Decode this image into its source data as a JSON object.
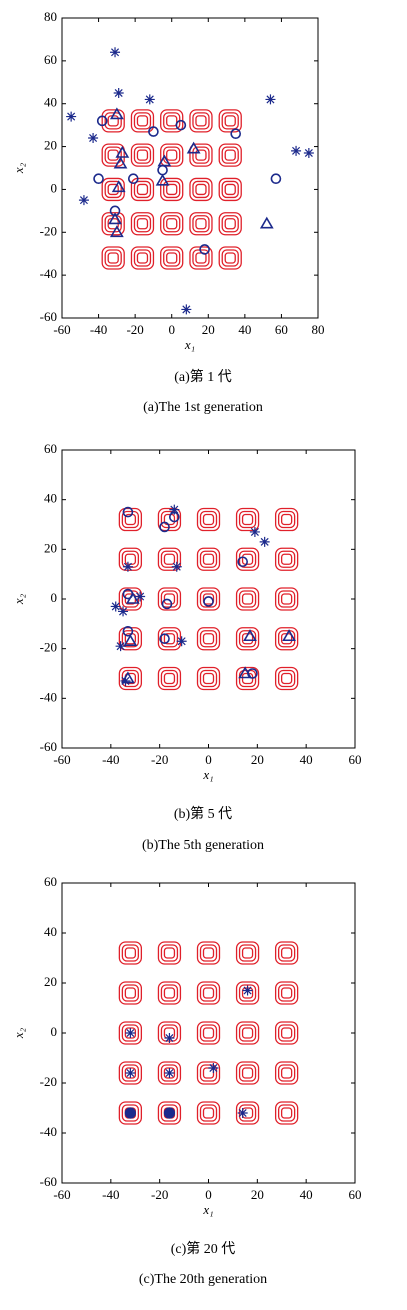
{
  "chart_data": [
    {
      "type": "scatter",
      "xlabel": "x₁",
      "ylabel": "x₂",
      "xlim": [
        -60,
        80
      ],
      "ylim": [
        -60,
        80
      ],
      "xticks": [
        -60,
        -40,
        -20,
        0,
        20,
        40,
        60,
        80
      ],
      "yticks": [
        -60,
        -40,
        -20,
        0,
        20,
        40,
        60,
        80
      ],
      "caption": [
        "(a)第 1 代",
        "(a)The 1st generation"
      ],
      "series": [
        {
          "marker": "square",
          "color": "#e0202a",
          "x": [
            -32,
            -16,
            0,
            16,
            32,
            -32,
            -16,
            0,
            16,
            32,
            -32,
            -16,
            0,
            16,
            32,
            -32,
            -16,
            0,
            16,
            32,
            -32,
            -16,
            0,
            16,
            32
          ],
          "y": [
            32,
            32,
            32,
            32,
            32,
            16,
            16,
            16,
            16,
            16,
            0,
            0,
            0,
            0,
            0,
            -16,
            -16,
            -16,
            -16,
            -16,
            -32,
            -32,
            -32,
            -32,
            -32
          ]
        },
        {
          "marker": "star",
          "color": "#1c2a8c",
          "x": [
            -55,
            -48,
            -43,
            -31,
            -29,
            -12,
            8,
            54,
            68,
            75
          ],
          "y": [
            34,
            -5,
            24,
            64,
            45,
            42,
            -56,
            42,
            18,
            17
          ]
        },
        {
          "marker": "circle",
          "color": "#1c2a8c",
          "x": [
            -38,
            -40,
            -21,
            -31,
            -10,
            -5,
            5,
            18,
            35,
            57
          ],
          "y": [
            32,
            5,
            5,
            -10,
            27,
            9,
            30,
            -28,
            26,
            5
          ]
        },
        {
          "marker": "triangle",
          "color": "#1c2a8c",
          "x": [
            -30,
            -27,
            -28,
            -29,
            -4,
            -5,
            12,
            -30,
            -31,
            52
          ],
          "y": [
            35,
            17,
            12,
            1,
            13,
            4,
            19,
            -20,
            -14,
            -16
          ]
        }
      ]
    },
    {
      "type": "scatter",
      "xlabel": "x₁",
      "ylabel": "x₂",
      "xlim": [
        -60,
        60
      ],
      "ylim": [
        -60,
        60
      ],
      "xticks": [
        -60,
        -40,
        -20,
        0,
        20,
        40,
        60
      ],
      "yticks": [
        -60,
        -40,
        -20,
        0,
        20,
        40,
        60
      ],
      "caption": [
        "(b)第 5 代",
        "(b)The 5th generation"
      ],
      "series": [
        {
          "marker": "square",
          "color": "#e0202a",
          "x": [
            -32,
            -16,
            0,
            16,
            32,
            -32,
            -16,
            0,
            16,
            32,
            -32,
            -16,
            0,
            16,
            32,
            -32,
            -16,
            0,
            16,
            32,
            -32,
            -16,
            0,
            16,
            32
          ],
          "y": [
            32,
            32,
            32,
            32,
            32,
            16,
            16,
            16,
            16,
            16,
            0,
            0,
            0,
            0,
            0,
            -16,
            -16,
            -16,
            -16,
            -16,
            -32,
            -32,
            -32,
            -32,
            -32
          ]
        },
        {
          "marker": "star",
          "color": "#1c2a8c",
          "x": [
            -38,
            -35,
            -36,
            -33,
            -28,
            -14,
            -13,
            -11,
            19,
            23,
            -34
          ],
          "y": [
            -3,
            -5,
            -19,
            13,
            1,
            36,
            13,
            -17,
            27,
            23,
            -33
          ]
        },
        {
          "marker": "circle",
          "color": "#1c2a8c",
          "x": [
            -33,
            -18,
            -14,
            -33,
            -33,
            -17,
            0,
            14,
            18,
            -18
          ],
          "y": [
            35,
            29,
            33,
            2,
            -13,
            -2,
            -1,
            15,
            -30,
            -16
          ]
        },
        {
          "marker": "triangle",
          "color": "#1c2a8c",
          "x": [
            -32,
            -33,
            -31,
            17,
            33,
            15
          ],
          "y": [
            -17,
            -32,
            0,
            -15,
            -15,
            -30
          ]
        }
      ]
    },
    {
      "type": "scatter",
      "xlabel": "x₁",
      "ylabel": "x₂",
      "xlim": [
        -60,
        60
      ],
      "ylim": [
        -60,
        60
      ],
      "xticks": [
        -60,
        -40,
        -20,
        0,
        20,
        40,
        60
      ],
      "yticks": [
        -60,
        -40,
        -20,
        0,
        20,
        40,
        60
      ],
      "caption": [
        "(c)第 20 代",
        "(c)The 20th generation"
      ],
      "series": [
        {
          "marker": "square",
          "color": "#e0202a",
          "x": [
            -32,
            -16,
            0,
            16,
            32,
            -32,
            -16,
            0,
            16,
            32,
            -32,
            -16,
            0,
            16,
            32,
            -32,
            -16,
            0,
            16,
            32,
            -32,
            -16,
            0,
            16,
            32
          ],
          "y": [
            32,
            32,
            32,
            32,
            32,
            16,
            16,
            16,
            16,
            16,
            0,
            0,
            0,
            0,
            0,
            -16,
            -16,
            -16,
            -16,
            -16,
            -32,
            -32,
            -32,
            -32,
            -32
          ]
        },
        {
          "marker": "star",
          "color": "#1c2a8c",
          "x": [
            -32,
            -32,
            -16,
            -16,
            2,
            16,
            14
          ],
          "y": [
            0,
            -16,
            -2,
            -16,
            -14,
            17,
            -32
          ]
        },
        {
          "marker": "filled-circle",
          "color": "#1c2a8c",
          "x": [
            -32,
            -16
          ],
          "y": [
            -32,
            -32
          ]
        }
      ]
    }
  ]
}
